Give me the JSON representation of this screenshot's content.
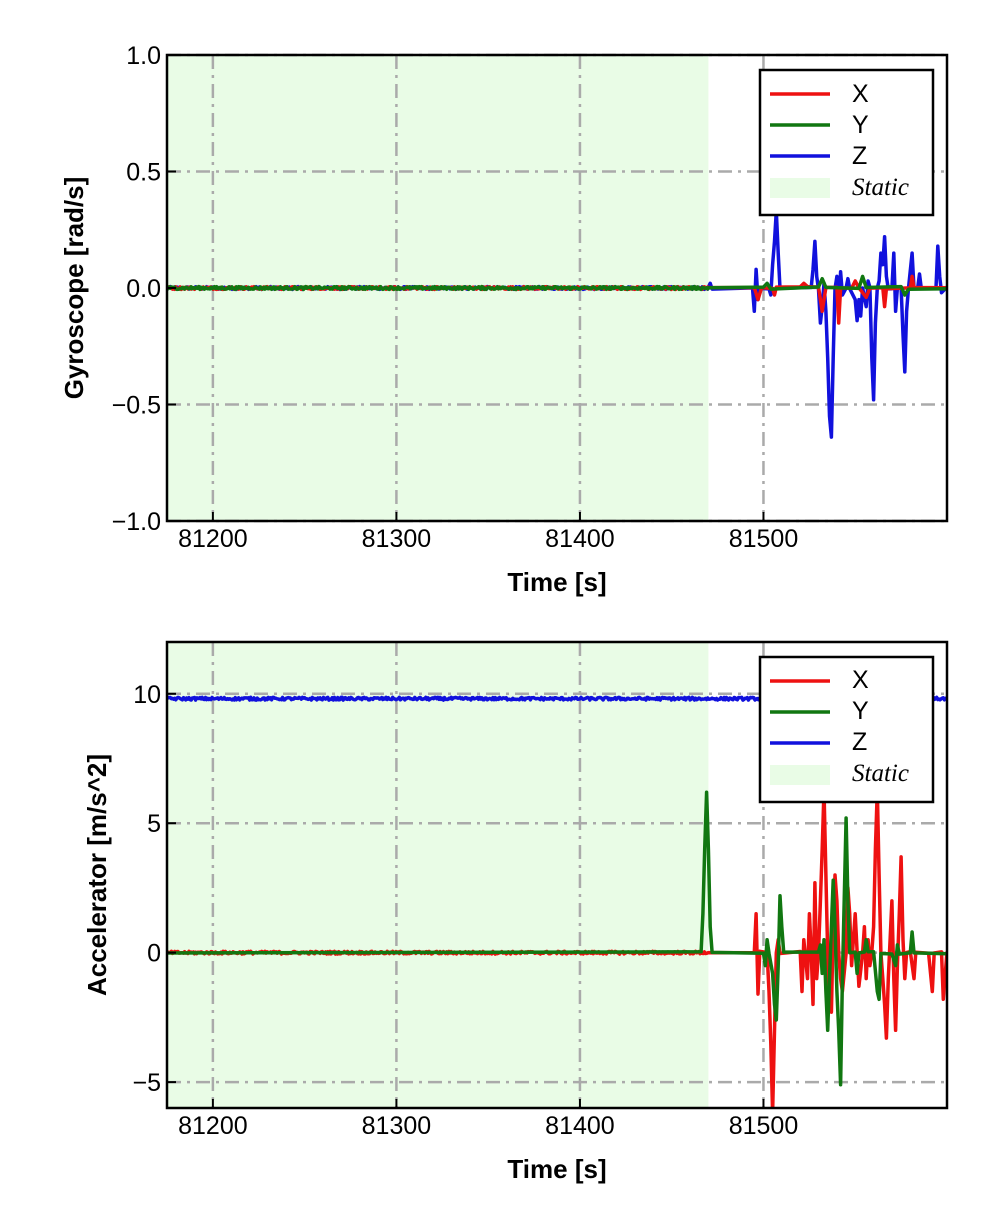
{
  "chart_data": [
    {
      "type": "line",
      "xlabel": "Time [s]",
      "ylabel": "Gyroscope [rad/s]",
      "xlim": [
        81175,
        81600
      ],
      "ylim": [
        -1.0,
        1.0
      ],
      "xticks": [
        81200,
        81300,
        81400,
        81500
      ],
      "xtick_labels": [
        "81200",
        "81300",
        "81400",
        "81500"
      ],
      "yticks": [
        -1.0,
        -0.5,
        0.0,
        0.5,
        1.0
      ],
      "ytick_labels": [
        "−1.0",
        "−0.5",
        "0.0",
        "0.5",
        "1.0"
      ],
      "grid": true,
      "legend_position": "top-right",
      "shaded_regions": [
        {
          "name": "Static",
          "x0": 81175,
          "x1": 81470,
          "color": "#e9fce6"
        }
      ],
      "series": [
        {
          "name": "X",
          "color": "#ee1111",
          "baseline": 0.0,
          "points": [
            [
              81470,
              0
            ],
            [
              81495,
              0
            ],
            [
              81497,
              -0.05
            ],
            [
              81499,
              0
            ],
            [
              81505,
              0
            ],
            [
              81506,
              -0.03
            ],
            [
              81507,
              0
            ],
            [
              81520,
              0
            ],
            [
              81522,
              0.02
            ],
            [
              81524,
              0
            ],
            [
              81530,
              0
            ],
            [
              81532,
              -0.1
            ],
            [
              81534,
              0
            ],
            [
              81540,
              0
            ],
            [
              81541,
              -0.15
            ],
            [
              81542,
              0
            ],
            [
              81548,
              0
            ],
            [
              81550,
              0.03
            ],
            [
              81552,
              0
            ],
            [
              81556,
              -0.04
            ],
            [
              81558,
              0
            ],
            [
              81565,
              0
            ],
            [
              81566,
              -0.08
            ],
            [
              81567,
              0
            ],
            [
              81580,
              0
            ],
            [
              81581,
              0.05
            ],
            [
              81582,
              0
            ],
            [
              81600,
              0
            ]
          ]
        },
        {
          "name": "Y",
          "color": "#117711",
          "baseline": 0.0,
          "points": [
            [
              81470,
              0
            ],
            [
              81500,
              0
            ],
            [
              81502,
              0.02
            ],
            [
              81504,
              0
            ],
            [
              81530,
              0
            ],
            [
              81532,
              0.04
            ],
            [
              81534,
              0
            ],
            [
              81552,
              0
            ],
            [
              81554,
              0.05
            ],
            [
              81556,
              0
            ],
            [
              81575,
              0
            ],
            [
              81577,
              -0.03
            ],
            [
              81579,
              0
            ],
            [
              81600,
              0
            ]
          ]
        },
        {
          "name": "Z",
          "color": "#1111dd",
          "baseline": 0.0,
          "points": [
            [
              81470,
              0
            ],
            [
              81471,
              0.02
            ],
            [
              81472,
              0
            ],
            [
              81494,
              0
            ],
            [
              81495,
              -0.1
            ],
            [
              81496,
              0.08
            ],
            [
              81497,
              -0.05
            ],
            [
              81498,
              0
            ],
            [
              81503,
              0
            ],
            [
              81504,
              -0.03
            ],
            [
              81505,
              0.1
            ],
            [
              81506,
              0.2
            ],
            [
              81507,
              0.33
            ],
            [
              81508,
              0.15
            ],
            [
              81509,
              0
            ],
            [
              81526,
              0
            ],
            [
              81527,
              0.08
            ],
            [
              81528,
              0.2
            ],
            [
              81529,
              0.05
            ],
            [
              81530,
              0
            ],
            [
              81531,
              -0.15
            ],
            [
              81532,
              -0.08
            ],
            [
              81533,
              0.02
            ],
            [
              81534,
              -0.1
            ],
            [
              81535,
              -0.3
            ],
            [
              81536,
              -0.55
            ],
            [
              81537,
              -0.64
            ],
            [
              81538,
              -0.3
            ],
            [
              81539,
              0
            ],
            [
              81540,
              0.05
            ],
            [
              81541,
              -0.1
            ],
            [
              81542,
              0.07
            ],
            [
              81543,
              -0.03
            ],
            [
              81545,
              0
            ],
            [
              81546,
              0.04
            ],
            [
              81547,
              0
            ],
            [
              81550,
              -0.05
            ],
            [
              81551,
              -0.14
            ],
            [
              81552,
              -0.05
            ],
            [
              81553,
              -0.12
            ],
            [
              81554,
              0
            ],
            [
              81556,
              -0.08
            ],
            [
              81557,
              0.03
            ],
            [
              81558,
              0
            ],
            [
              81559,
              -0.3
            ],
            [
              81560,
              -0.48
            ],
            [
              81561,
              -0.15
            ],
            [
              81562,
              0
            ],
            [
              81563,
              0.03
            ],
            [
              81564,
              0.15
            ],
            [
              81565,
              0.1
            ],
            [
              81566,
              0.22
            ],
            [
              81567,
              0.05
            ],
            [
              81568,
              0
            ],
            [
              81570,
              0
            ],
            [
              81571,
              0.15
            ],
            [
              81572,
              -0.1
            ],
            [
              81573,
              0
            ],
            [
              81575,
              0
            ],
            [
              81576,
              -0.2
            ],
            [
              81577,
              -0.36
            ],
            [
              81578,
              -0.1
            ],
            [
              81579,
              0
            ],
            [
              81581,
              0.15
            ],
            [
              81582,
              0
            ],
            [
              81584,
              0
            ],
            [
              81585,
              0.06
            ],
            [
              81586,
              0
            ],
            [
              81594,
              0
            ],
            [
              81595,
              0.18
            ],
            [
              81596,
              0.05
            ],
            [
              81597,
              -0.02
            ],
            [
              81600,
              0
            ]
          ]
        }
      ]
    },
    {
      "type": "line",
      "xlabel": "Time [s]",
      "ylabel": "Accelerator [m/s^2]",
      "xlim": [
        81175,
        81600
      ],
      "ylim": [
        -6.0,
        12.0
      ],
      "xticks": [
        81200,
        81300,
        81400,
        81500
      ],
      "xtick_labels": [
        "81200",
        "81300",
        "81400",
        "81500"
      ],
      "yticks": [
        -5,
        0,
        5,
        10
      ],
      "ytick_labels": [
        "−5",
        "0",
        "5",
        "10"
      ],
      "grid": true,
      "legend_position": "top-right",
      "shaded_regions": [
        {
          "name": "Static",
          "x0": 81175,
          "x1": 81470,
          "color": "#e9fce6"
        }
      ],
      "series": [
        {
          "name": "X",
          "color": "#ee1111",
          "baseline": 0.0,
          "points": [
            [
              81470,
              0
            ],
            [
              81495,
              0
            ],
            [
              81496,
              1.5
            ],
            [
              81497,
              -1.6
            ],
            [
              81498,
              0
            ],
            [
              81502,
              0
            ],
            [
              81503,
              -1.5
            ],
            [
              81504,
              -3.5
            ],
            [
              81505,
              -6.2
            ],
            [
              81506,
              -3
            ],
            [
              81507,
              0
            ],
            [
              81508,
              0.5
            ],
            [
              81509,
              0
            ],
            [
              81520,
              0
            ],
            [
              81521,
              -1.5
            ],
            [
              81522,
              0.5
            ],
            [
              81524,
              -1
            ],
            [
              81525,
              1.5
            ],
            [
              81526,
              0
            ],
            [
              81527,
              -2
            ],
            [
              81528,
              2.7
            ],
            [
              81529,
              -1
            ],
            [
              81530,
              0
            ],
            [
              81531,
              2
            ],
            [
              81532,
              4
            ],
            [
              81533,
              6.3
            ],
            [
              81534,
              3
            ],
            [
              81535,
              0
            ],
            [
              81536,
              -2
            ],
            [
              81537,
              -2.3
            ],
            [
              81538,
              1
            ],
            [
              81539,
              3
            ],
            [
              81540,
              2
            ],
            [
              81541,
              0
            ],
            [
              81542,
              -1
            ],
            [
              81543,
              -1.5
            ],
            [
              81545,
              0
            ],
            [
              81546,
              2.5
            ],
            [
              81547,
              1.5
            ],
            [
              81548,
              -0.5
            ],
            [
              81550,
              1.5
            ],
            [
              81551,
              0
            ],
            [
              81552,
              -1.3
            ],
            [
              81554,
              0
            ],
            [
              81555,
              1
            ],
            [
              81556,
              -1
            ],
            [
              81557,
              0.5
            ],
            [
              81558,
              -0.5
            ],
            [
              81559,
              0
            ],
            [
              81560,
              1
            ],
            [
              81561,
              4
            ],
            [
              81562,
              6.3
            ],
            [
              81563,
              3
            ],
            [
              81564,
              0
            ],
            [
              81565,
              -1
            ],
            [
              81566,
              -2
            ],
            [
              81567,
              -3.3
            ],
            [
              81568,
              -1
            ],
            [
              81569,
              0.5
            ],
            [
              81570,
              2
            ],
            [
              81571,
              -1
            ],
            [
              81572,
              -3
            ],
            [
              81573,
              -0.5
            ],
            [
              81574,
              1.5
            ],
            [
              81575,
              3.7
            ],
            [
              81576,
              0.5
            ],
            [
              81577,
              -1
            ],
            [
              81578,
              0
            ],
            [
              81580,
              0
            ],
            [
              81582,
              -1
            ],
            [
              81583,
              0
            ],
            [
              81590,
              0
            ],
            [
              81592,
              -1.5
            ],
            [
              81593,
              0
            ],
            [
              81597,
              0
            ],
            [
              81598,
              -1.8
            ],
            [
              81600,
              0
            ]
          ]
        },
        {
          "name": "Y",
          "color": "#117711",
          "baseline": 0.0,
          "points": [
            [
              81175,
              0
            ],
            [
              81466,
              0
            ],
            [
              81467,
              1.5
            ],
            [
              81468,
              4
            ],
            [
              81469,
              6.2
            ],
            [
              81470,
              4
            ],
            [
              81471,
              1
            ],
            [
              81472,
              0
            ],
            [
              81500,
              0
            ],
            [
              81501,
              -0.5
            ],
            [
              81502,
              0.5
            ],
            [
              81503,
              0
            ],
            [
              81505,
              -0.8
            ],
            [
              81506,
              -2
            ],
            [
              81507,
              -2.6
            ],
            [
              81508,
              -0.5
            ],
            [
              81509,
              2.2
            ],
            [
              81510,
              1
            ],
            [
              81511,
              0
            ],
            [
              81530,
              0
            ],
            [
              81531,
              0.3
            ],
            [
              81532,
              -0.8
            ],
            [
              81533,
              0.5
            ],
            [
              81534,
              -1.5
            ],
            [
              81535,
              -3
            ],
            [
              81536,
              -1
            ],
            [
              81537,
              1
            ],
            [
              81538,
              2.8
            ],
            [
              81539,
              1
            ],
            [
              81540,
              -1.5
            ],
            [
              81541,
              -3
            ],
            [
              81542,
              -5.1
            ],
            [
              81543,
              -1
            ],
            [
              81544,
              2
            ],
            [
              81545,
              5.2
            ],
            [
              81546,
              2
            ],
            [
              81547,
              0
            ],
            [
              81550,
              0
            ],
            [
              81551,
              -0.8
            ],
            [
              81552,
              0
            ],
            [
              81555,
              0
            ],
            [
              81556,
              0.5
            ],
            [
              81557,
              0
            ],
            [
              81560,
              0
            ],
            [
              81562,
              -1.5
            ],
            [
              81563,
              -1.8
            ],
            [
              81564,
              0
            ],
            [
              81570,
              0
            ],
            [
              81572,
              -0.5
            ],
            [
              81573,
              0.3
            ],
            [
              81574,
              0
            ],
            [
              81580,
              0
            ],
            [
              81581,
              0.8
            ],
            [
              81582,
              0
            ],
            [
              81600,
              0
            ]
          ]
        },
        {
          "name": "Z",
          "color": "#1111dd",
          "baseline": 9.81,
          "points": [
            [
              81175,
              9.81
            ],
            [
              81600,
              9.81
            ]
          ]
        }
      ]
    }
  ]
}
